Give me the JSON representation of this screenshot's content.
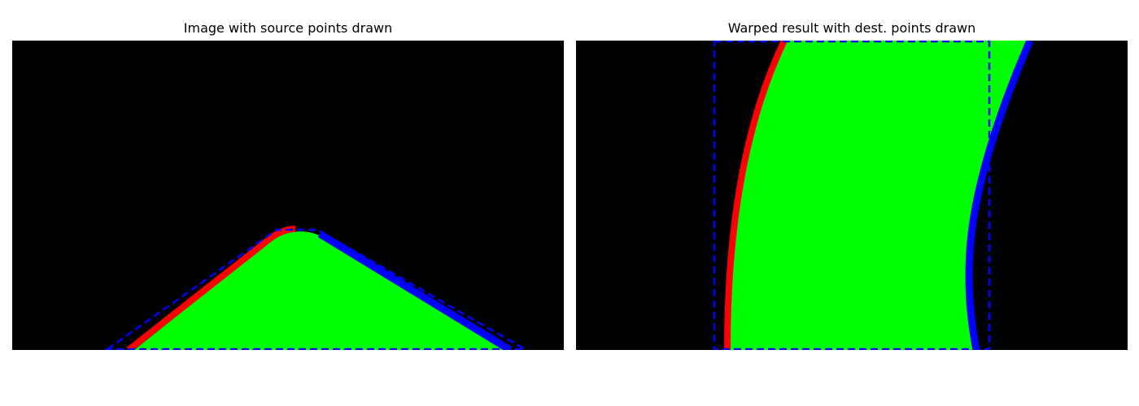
{
  "panels": {
    "left": {
      "title": "Image with source points drawn"
    },
    "right": {
      "title": "Warped result with dest. points drawn"
    }
  },
  "colors": {
    "background": "#000000",
    "lane_fill": "#00ff00",
    "left_lane_line": "#ff0000",
    "right_lane_line": "#0000ff",
    "point_outline": "#0000ff",
    "page": "#ffffff"
  }
}
